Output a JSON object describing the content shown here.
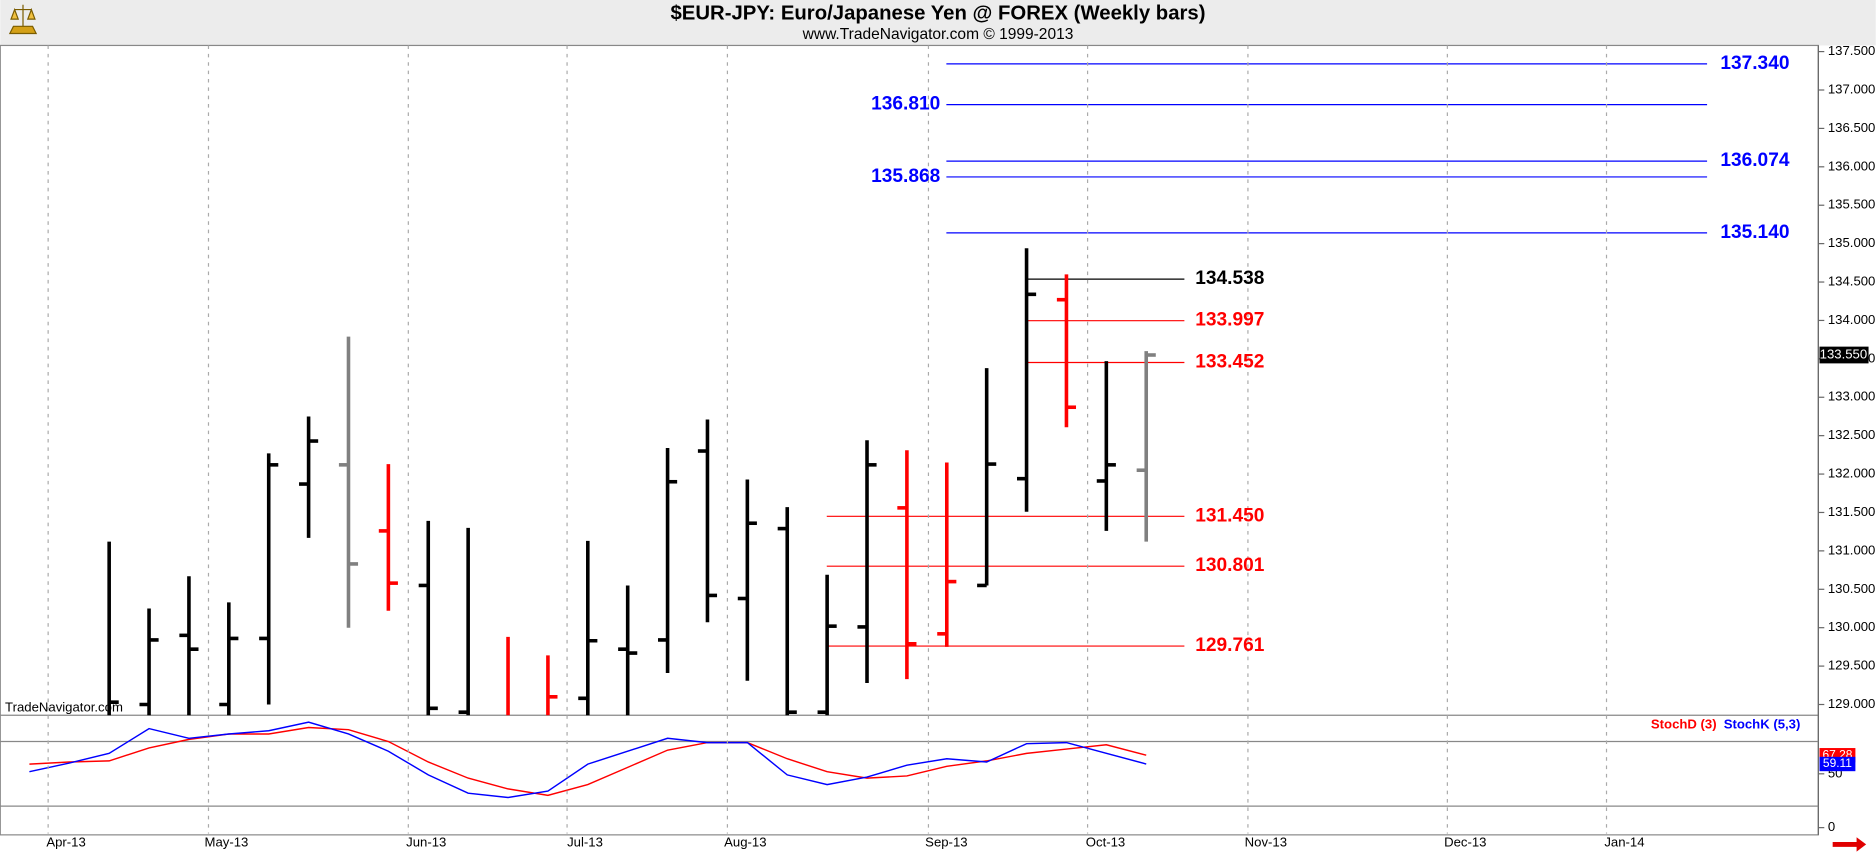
{
  "chart_data": [
    {
      "type": "ohlc",
      "title": "$EUR-JPY:  Euro/Japanese Yen @ FOREX  (Weekly bars)",
      "subtitle": "www.TradeNavigator.com © 1999-2013",
      "watermark": "TradeNavigator.com",
      "categories": [
        null,
        null,
        null,
        null,
        null,
        null,
        null,
        null,
        null,
        null,
        null,
        null,
        null,
        null,
        null,
        null,
        null,
        null,
        null,
        null,
        null,
        null,
        null,
        null,
        null,
        null,
        null,
        null,
        null
      ],
      "xlim": [
        -0.73,
        44.85
      ],
      "xticks": [
        {
          "value": 0.47,
          "label": "Apr-13"
        },
        {
          "value": 4.49,
          "label": "May-13"
        },
        {
          "value": 9.5,
          "label": "Jun-13"
        },
        {
          "value": 13.48,
          "label": "Jul-13"
        },
        {
          "value": 17.5,
          "label": "Aug-13"
        },
        {
          "value": 22.54,
          "label": "Sep-13"
        },
        {
          "value": 26.53,
          "label": "Oct-13"
        },
        {
          "value": 30.55,
          "label": "Nov-13"
        },
        {
          "value": 35.55,
          "label": "Dec-13"
        },
        {
          "value": 39.54,
          "label": "Jan-14"
        }
      ],
      "open": [
        null,
        null,
        128.7,
        129.0,
        129.9,
        129.0,
        129.86,
        131.87,
        132.12,
        131.26,
        130.55,
        128.9,
        128.7,
        128.8,
        129.08,
        129.72,
        129.84,
        132.3,
        130.38,
        131.29,
        128.9,
        130.01,
        131.56,
        129.92,
        130.55,
        131.94,
        134.27,
        131.91,
        132.05
      ],
      "high": [
        null,
        null,
        131.12,
        130.25,
        130.67,
        130.33,
        132.27,
        132.75,
        133.79,
        132.13,
        131.39,
        131.3,
        129.88,
        129.64,
        131.13,
        130.55,
        132.34,
        132.71,
        131.93,
        131.57,
        130.69,
        132.44,
        132.31,
        132.15,
        133.38,
        134.94,
        134.6,
        133.47,
        133.6
      ],
      "low": [
        null,
        null,
        128.5,
        128.6,
        128.6,
        128.6,
        129.0,
        131.17,
        130.0,
        130.22,
        128.7,
        128.6,
        128.6,
        128.6,
        128.6,
        128.6,
        129.41,
        130.07,
        129.31,
        128.8,
        128.7,
        129.28,
        129.33,
        129.75,
        130.55,
        131.51,
        132.61,
        131.26,
        131.12
      ],
      "close": [
        null,
        null,
        129.03,
        129.84,
        129.72,
        129.86,
        132.12,
        132.43,
        130.83,
        130.58,
        128.95,
        128.8,
        128.8,
        129.1,
        129.83,
        129.67,
        131.9,
        130.42,
        131.36,
        128.9,
        130.02,
        132.12,
        129.79,
        130.6,
        132.13,
        134.34,
        132.87,
        132.12,
        133.55
      ],
      "colors": [
        null,
        null,
        "#000000",
        "#000000",
        "#000000",
        "#000000",
        "#000000",
        "#000000",
        "#808080",
        "#ff0000",
        "#000000",
        "#000000",
        "#ff0000",
        "#ff0000",
        "#000000",
        "#000000",
        "#000000",
        "#000000",
        "#000000",
        "#000000",
        "#000000",
        "#000000",
        "#ff0000",
        "#ff0000",
        "#000000",
        "#000000",
        "#ff0000",
        "#000000",
        "#808080"
      ],
      "last_label": "133.550",
      "ylim": [
        128.86,
        137.58
      ],
      "yticks": [
        {
          "value": 129,
          "label": "129.000"
        },
        {
          "value": 129.5,
          "label": "129.500"
        },
        {
          "value": 130,
          "label": "130.000"
        },
        {
          "value": 130.5,
          "label": "130.500"
        },
        {
          "value": 131,
          "label": "131.000"
        },
        {
          "value": 131.5,
          "label": "131.500"
        },
        {
          "value": 132,
          "label": "132.000"
        },
        {
          "value": 132.5,
          "label": "132.500"
        },
        {
          "value": 133,
          "label": "133.000"
        },
        {
          "value": 133.5,
          "label": "133.500"
        },
        {
          "value": 134,
          "label": "134.000"
        },
        {
          "value": 134.5,
          "label": "134.500"
        },
        {
          "value": 135,
          "label": "135.000"
        },
        {
          "value": 135.5,
          "label": "135.500"
        },
        {
          "value": 136,
          "label": "136.000"
        },
        {
          "value": 136.5,
          "label": "136.500"
        },
        {
          "value": 137,
          "label": "137.000"
        },
        {
          "value": 137.5,
          "label": "137.500"
        }
      ],
      "levels": [
        {
          "value": 137.34,
          "label": "137.340",
          "color": "#0000ff"
        },
        {
          "value": 136.81,
          "label": "136.810",
          "color": "#0000ff"
        },
        {
          "value": 136.074,
          "label": "136.074",
          "color": "#0000ff"
        },
        {
          "value": 135.868,
          "label": "135.868",
          "color": "#0000ff"
        },
        {
          "value": 135.14,
          "label": "135.140",
          "color": "#0000ff"
        },
        {
          "value": 134.538,
          "label": "134.538",
          "color": "#000000"
        },
        {
          "value": 133.997,
          "label": "133.997",
          "color": "#ff0000"
        },
        {
          "value": 133.452,
          "label": "133.452",
          "color": "#ff0000"
        },
        {
          "value": 131.45,
          "label": "131.450",
          "color": "#ff0000"
        },
        {
          "value": 130.801,
          "label": "130.801",
          "color": "#ff0000"
        },
        {
          "value": 129.761,
          "label": "129.761",
          "color": "#ff0000"
        }
      ]
    },
    {
      "type": "stochastic",
      "series": [
        {
          "name": "StochD (3)",
          "color": "#ff0000",
          "values": [
            59,
            61,
            62,
            74,
            82,
            87,
            87,
            93,
            91,
            80,
            61,
            46,
            36,
            30,
            40,
            56,
            72,
            79,
            79,
            64,
            52,
            46,
            48,
            57,
            62,
            69,
            73,
            77,
            67.28
          ]
        },
        {
          "name": "StochK (5,3)",
          "color": "#0000ff",
          "values": [
            52,
            60,
            69,
            92,
            83,
            87,
            90,
            98,
            87,
            71,
            49,
            32,
            28,
            34,
            59,
            71,
            83,
            79,
            79,
            49,
            40,
            47,
            58,
            64,
            61,
            78,
            79,
            69,
            59.11
          ]
        }
      ],
      "ylim": [
        -5.6,
        104.4
      ],
      "yticks": [
        0,
        50
      ],
      "reference_lines": [
        20,
        80
      ]
    }
  ]
}
